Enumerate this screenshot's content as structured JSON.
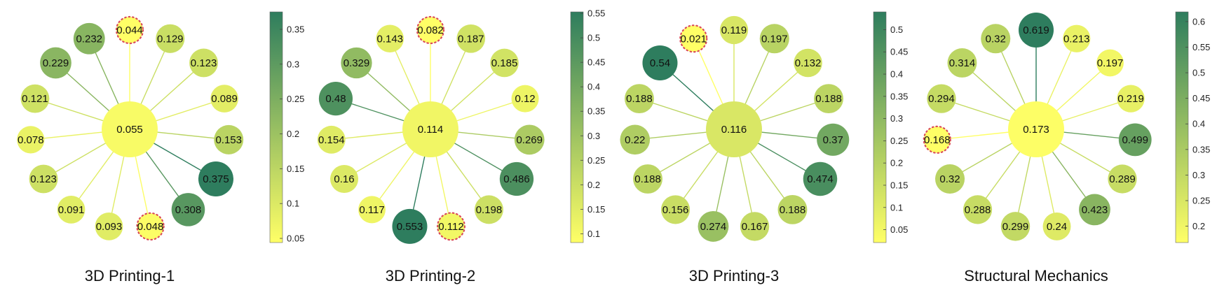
{
  "figure": {
    "colormap": {
      "low": "#ffff66",
      "high": "#2e7d5e"
    },
    "highlight_color": "#d94a5a"
  },
  "chart_data": [
    {
      "type": "network",
      "title": "3D Printing-1",
      "center_value": 0.055,
      "values": [
        0.044,
        0.129,
        0.123,
        0.089,
        0.153,
        0.375,
        0.308,
        0.048,
        0.093,
        0.091,
        0.123,
        0.078,
        0.121,
        0.229,
        0.232
      ],
      "highlighted": [
        0,
        7
      ],
      "colorbar": {
        "range": [
          0.044,
          0.375
        ],
        "ticks": [
          0.05,
          0.1,
          0.15,
          0.2,
          0.25,
          0.3,
          0.35
        ],
        "tick_labels": [
          "0.05",
          "0.1",
          "0.15",
          "0.2",
          "0.25",
          "0.3",
          "0.35"
        ]
      }
    },
    {
      "type": "network",
      "title": "3D Printing-2",
      "center_value": 0.114,
      "values": [
        0.082,
        0.187,
        0.185,
        0.12,
        0.269,
        0.486,
        0.198,
        0.112,
        0.553,
        0.117,
        0.16,
        0.154,
        0.48,
        0.329,
        0.143
      ],
      "highlighted": [
        0,
        7
      ],
      "colorbar": {
        "range": [
          0.082,
          0.553
        ],
        "ticks": [
          0.1,
          0.15,
          0.2,
          0.25,
          0.3,
          0.35,
          0.4,
          0.45,
          0.5,
          0.55
        ],
        "tick_labels": [
          "0.1",
          "0.15",
          "0.2",
          "0.25",
          "0.3",
          "0.35",
          "0.4",
          "0.45",
          "0.5",
          "0.55"
        ]
      }
    },
    {
      "type": "network",
      "title": "3D Printing-3",
      "center_value": 0.116,
      "values": [
        0.119,
        0.197,
        0.132,
        0.188,
        0.37,
        0.474,
        0.188,
        0.167,
        0.274,
        0.156,
        0.188,
        0.22,
        0.188,
        0.54,
        0.021
      ],
      "highlighted": [
        14
      ],
      "colorbar": {
        "range": [
          0.021,
          0.54
        ],
        "ticks": [
          0.05,
          0.1,
          0.15,
          0.2,
          0.25,
          0.3,
          0.35,
          0.4,
          0.45,
          0.5
        ],
        "tick_labels": [
          "0.05",
          "0.1",
          "0.15",
          "0.2",
          "0.25",
          "0.3",
          "0.35",
          "0.4",
          "0.45",
          "0.5"
        ]
      }
    },
    {
      "type": "network",
      "title": "Structural Mechanics",
      "center_value": 0.173,
      "values": [
        0.619,
        0.213,
        0.197,
        0.219,
        0.499,
        0.289,
        0.423,
        0.24,
        0.299,
        0.288,
        0.32,
        0.168,
        0.294,
        0.314,
        0.32
      ],
      "highlighted": [
        11
      ],
      "colorbar": {
        "range": [
          0.168,
          0.619
        ],
        "ticks": [
          0.2,
          0.25,
          0.3,
          0.35,
          0.4,
          0.45,
          0.5,
          0.55,
          0.6
        ],
        "tick_labels": [
          "0.2",
          "0.25",
          "0.3",
          "0.35",
          "0.4",
          "0.45",
          "0.5",
          "0.55",
          "0.6"
        ]
      }
    }
  ]
}
